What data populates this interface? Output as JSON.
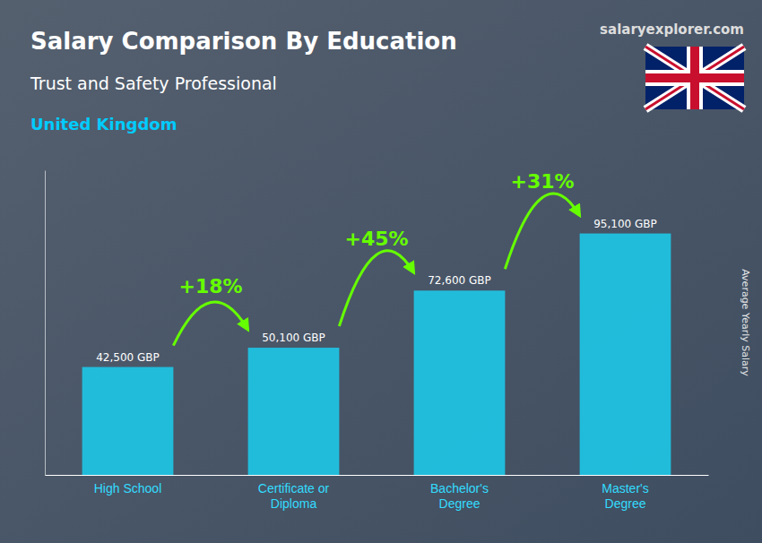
{
  "chart_data": {
    "type": "bar",
    "title": "Salary Comparison By Education",
    "subtitle": "Trust and Safety Professional",
    "y_label": "Average Yearly Salary",
    "categories": [
      "High School",
      "Certificate or\nDiploma",
      "Bachelor's\nDegree",
      "Master's\nDegree"
    ],
    "values": [
      42500,
      50100,
      72600,
      95100
    ],
    "value_labels": [
      "42,500 GBP",
      "50,100 GBP",
      "72,600 GBP",
      "95,100 GBP"
    ],
    "data_labels": true,
    "color": "#1ec8e8",
    "ylim": [
      0,
      120000
    ],
    "grid": false,
    "tick_labels": "x",
    "annotations": [
      {
        "text": "United Kingdom",
        "color": "#00ccff"
      },
      {
        "text": "salaryexplorer.com"
      },
      {
        "text": "+18%",
        "from": 0,
        "to": 1,
        "color": "#66ff00"
      },
      {
        "text": "+45%",
        "from": 1,
        "to": 2,
        "color": "#66ff00"
      },
      {
        "text": "+31%",
        "from": 2,
        "to": 3,
        "color": "#66ff00"
      }
    ]
  }
}
